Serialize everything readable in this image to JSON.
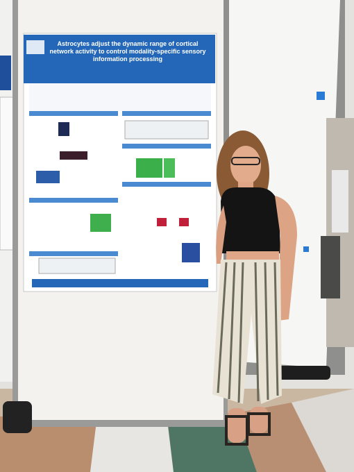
{
  "poster": {
    "title": "Astrocytes adjust the dynamic range of cortical network activity to control modality-specific sensory information processing"
  }
}
